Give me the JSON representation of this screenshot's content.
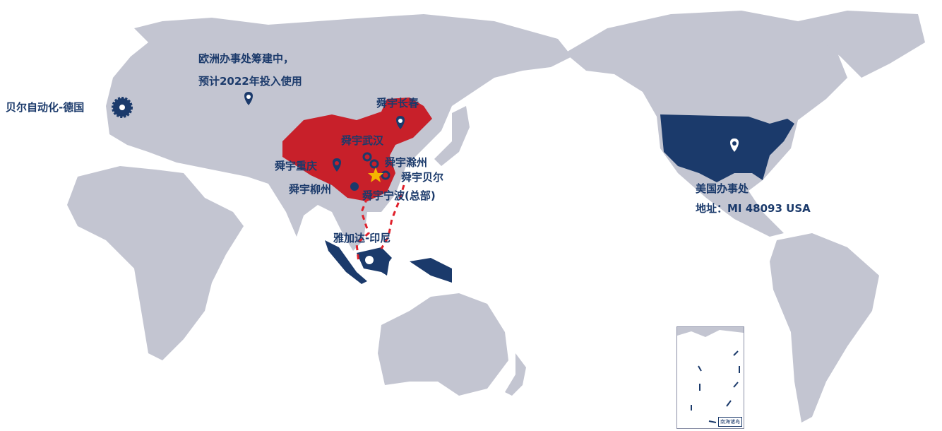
{
  "colors": {
    "land": "#c3c5d1",
    "china": "#c8202a",
    "highlight": "#1b3a6b",
    "route": "#e0202a",
    "hq_star": "#f5b400"
  },
  "labels": {
    "europe_line1": "欧洲办事处筹建中，",
    "europe_line2": "预计2022年投入使用",
    "germany": "贝尔自动化-德国",
    "changchun": "舜宇长春",
    "wuhan": "舜宇武汉",
    "chongqing": "舜宇重庆",
    "chuzhou": "舜宇滁州",
    "beier": "舜宇贝尔",
    "liuzhou": "舜宇柳州",
    "ningbo": "舜宇宁波(总部)",
    "jakarta": "雅加达-印尼",
    "usa_line1": "美国办事处",
    "usa_line2": "地址：MI 48093 USA"
  },
  "inset": {
    "title": "南海诸岛"
  },
  "icons": {
    "location": "map-pin-icon",
    "hq": "star-icon",
    "plant": "ring-icon",
    "gear": "gear-icon"
  }
}
